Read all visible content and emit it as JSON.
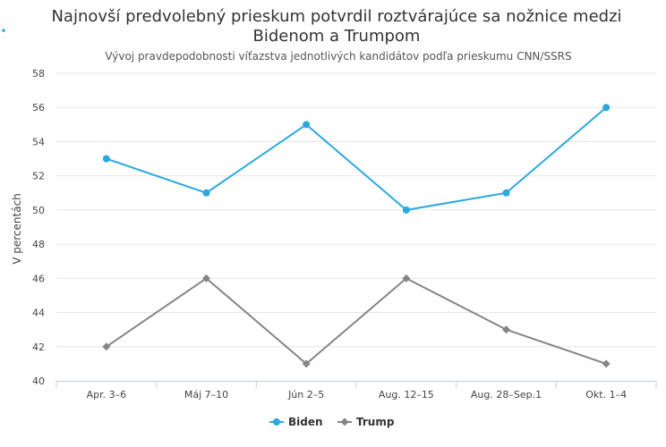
{
  "chart_data": {
    "type": "line",
    "title": "Najnovší predvolebný prieskum potvrdil roztvárajúce sa nožnice medzi Bidenom a Trumpom",
    "title_lines": [
      "Najnovší predvolebný prieskum potvrdil roztvárajúce sa nožnice medzi",
      "Bidenom a Trumpom"
    ],
    "subtitle": "Vývoj pravdepodobnosti víťazstva jednotlivých kandidátov podľa prieskumu CNN/SSRS",
    "xlabel": "",
    "ylabel": "V percentách",
    "categories": [
      "Apr. 3–6",
      "Máj 7–10",
      "Jún 2–5",
      "Aug. 12–15",
      "Aug. 28–Sep.1",
      "Okt. 1–4"
    ],
    "ylim": [
      40,
      58
    ],
    "yticks": [
      40,
      42,
      44,
      46,
      48,
      50,
      52,
      54,
      56,
      58
    ],
    "grid": "horizontal",
    "legend_position": "bottom-center",
    "series": [
      {
        "name": "Biden",
        "color": "#2ba8e0",
        "marker": "circle",
        "values": [
          53,
          51,
          55,
          50,
          51,
          56
        ]
      },
      {
        "name": "Trump",
        "color": "#858585",
        "marker": "diamond",
        "values": [
          42,
          46,
          41,
          46,
          43,
          41
        ]
      }
    ]
  }
}
